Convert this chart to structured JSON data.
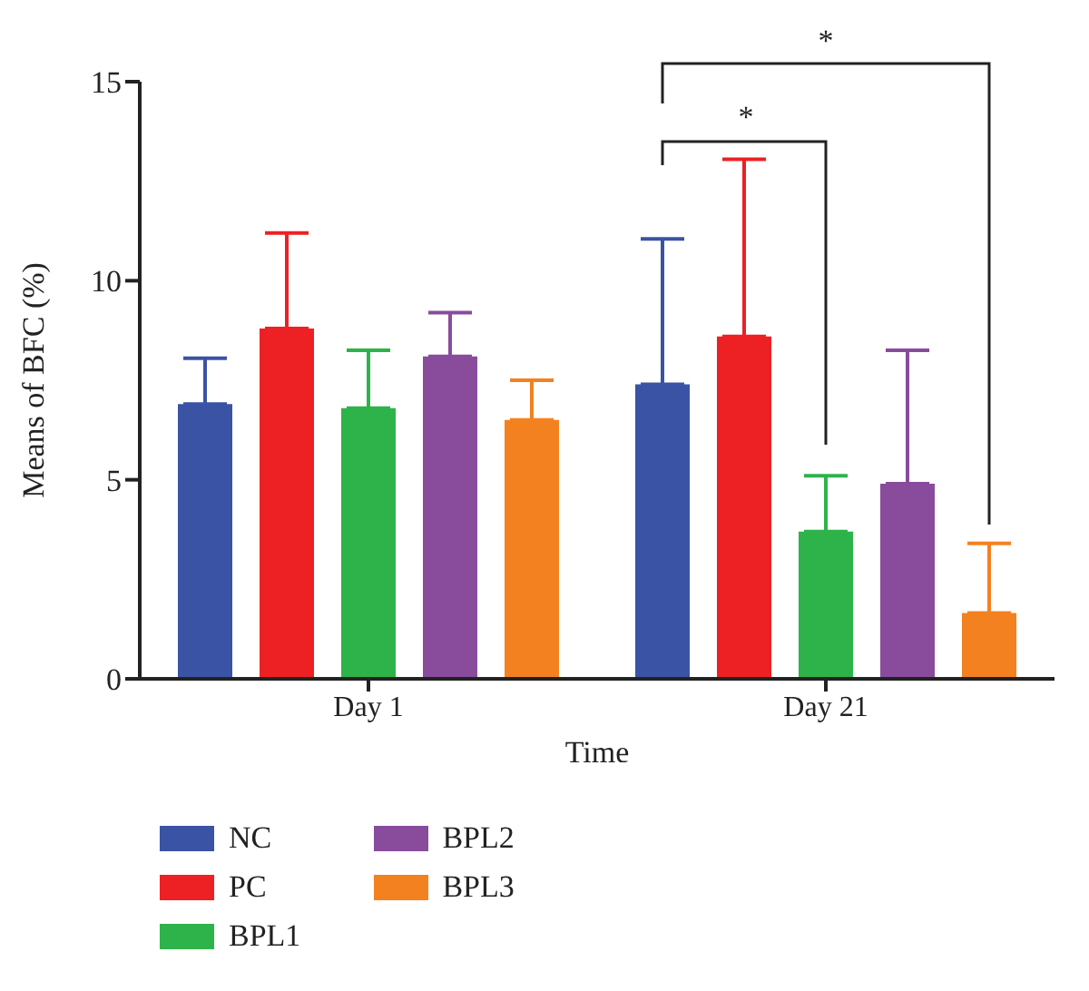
{
  "chart_data": {
    "type": "bar",
    "xlabel": "Time",
    "ylabel": "Means of BFC (%)",
    "categories": [
      "Day 1",
      "Day 21"
    ],
    "series": [
      {
        "name": "NC",
        "color": "#3a53a4",
        "values": [
          6.9,
          7.4
        ],
        "errors": [
          [
            6.9,
            8.05
          ],
          [
            7.4,
            11.05
          ]
        ]
      },
      {
        "name": "PC",
        "color": "#ed2024",
        "values": [
          8.8,
          8.6
        ],
        "errors": [
          [
            8.8,
            11.2
          ],
          [
            8.6,
            13.05
          ]
        ]
      },
      {
        "name": "BPL1",
        "color": "#2eb34a",
        "values": [
          6.8,
          3.7
        ],
        "errors": [
          [
            6.8,
            8.25
          ],
          [
            3.7,
            5.1
          ]
        ]
      },
      {
        "name": "BPL2",
        "color": "#894c9d",
        "values": [
          8.1,
          4.9
        ],
        "errors": [
          [
            8.1,
            9.2
          ],
          [
            4.9,
            8.25
          ]
        ]
      },
      {
        "name": "BPL3",
        "color": "#f48120",
        "values": [
          6.5,
          1.65
        ],
        "errors": [
          [
            6.5,
            7.5
          ],
          [
            1.65,
            3.4
          ]
        ]
      }
    ],
    "ylim": [
      0,
      15
    ],
    "yticks": [
      0,
      5,
      10,
      15
    ],
    "legend": "bottom",
    "annotations": [
      "*",
      "*"
    ]
  }
}
